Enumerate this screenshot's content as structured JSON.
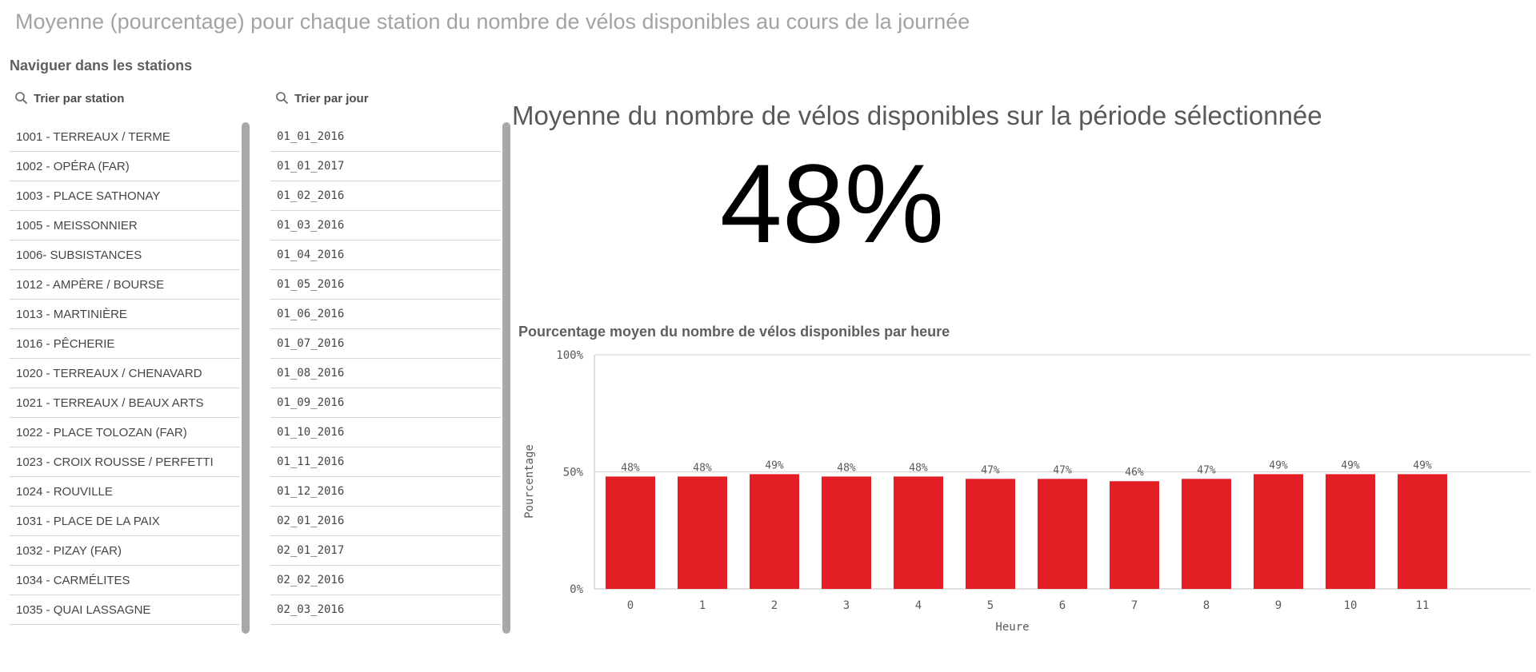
{
  "page": {
    "title": "Moyenne (pourcentage) pour chaque station du nombre de vélos disponibles au cours de la journée"
  },
  "navigation": {
    "label": "Naviguer dans les stations",
    "station_filter": {
      "header": "Trier par station",
      "icon": "search-icon",
      "items": [
        "1001 - TERREAUX / TERME",
        "1002 - OPÉRA (FAR)",
        "1003 - PLACE SATHONAY",
        "1005 - MEISSONNIER",
        "1006- SUBSISTANCES",
        "1012 - AMPÈRE / BOURSE",
        "1013 - MARTINIÈRE",
        "1016 - PÊCHERIE",
        "1020 - TERREAUX / CHENAVARD",
        "1021 - TERREAUX / BEAUX ARTS",
        "1022 - PLACE TOLOZAN (FAR)",
        "1023 - CROIX ROUSSE / PERFETTI",
        "1024 - ROUVILLE",
        "1031 - PLACE DE LA PAIX",
        "1032 - PIZAY (FAR)",
        "1034 - CARMÉLITES",
        "1035 - QUAI LASSAGNE"
      ]
    },
    "day_filter": {
      "header": "Trier par jour",
      "icon": "search-icon",
      "items": [
        "01_01_2016",
        "01_01_2017",
        "01_02_2016",
        "01_03_2016",
        "01_04_2016",
        "01_05_2016",
        "01_06_2016",
        "01_07_2016",
        "01_08_2016",
        "01_09_2016",
        "01_10_2016",
        "01_11_2016",
        "01_12_2016",
        "02_01_2016",
        "02_01_2017",
        "02_02_2016",
        "02_03_2016"
      ]
    }
  },
  "kpi": {
    "title": "Moyenne du nombre de vélos disponibles sur la période sélectionnée",
    "value": "48%"
  },
  "chart_title": "Pourcentage moyen du nombre de vélos disponibles par heure",
  "chart_data": {
    "type": "bar",
    "categories": [
      "0",
      "1",
      "2",
      "3",
      "4",
      "5",
      "6",
      "7",
      "8",
      "9",
      "10",
      "11"
    ],
    "values": [
      48,
      48,
      49,
      48,
      48,
      47,
      47,
      46,
      47,
      49,
      49,
      49
    ],
    "data_labels": [
      "48%",
      "48%",
      "49%",
      "48%",
      "48%",
      "47%",
      "47%",
      "46%",
      "47%",
      "49%",
      "49%",
      "49%"
    ],
    "xlabel": "Heure",
    "ylabel": "Pourcentage",
    "ylim": [
      0,
      100
    ],
    "yticks": [
      {
        "value": 0,
        "label": "0%"
      },
      {
        "value": 50,
        "label": "50%"
      },
      {
        "value": 100,
        "label": "100%"
      }
    ],
    "bar_color": "#e31e24",
    "grid": true
  }
}
